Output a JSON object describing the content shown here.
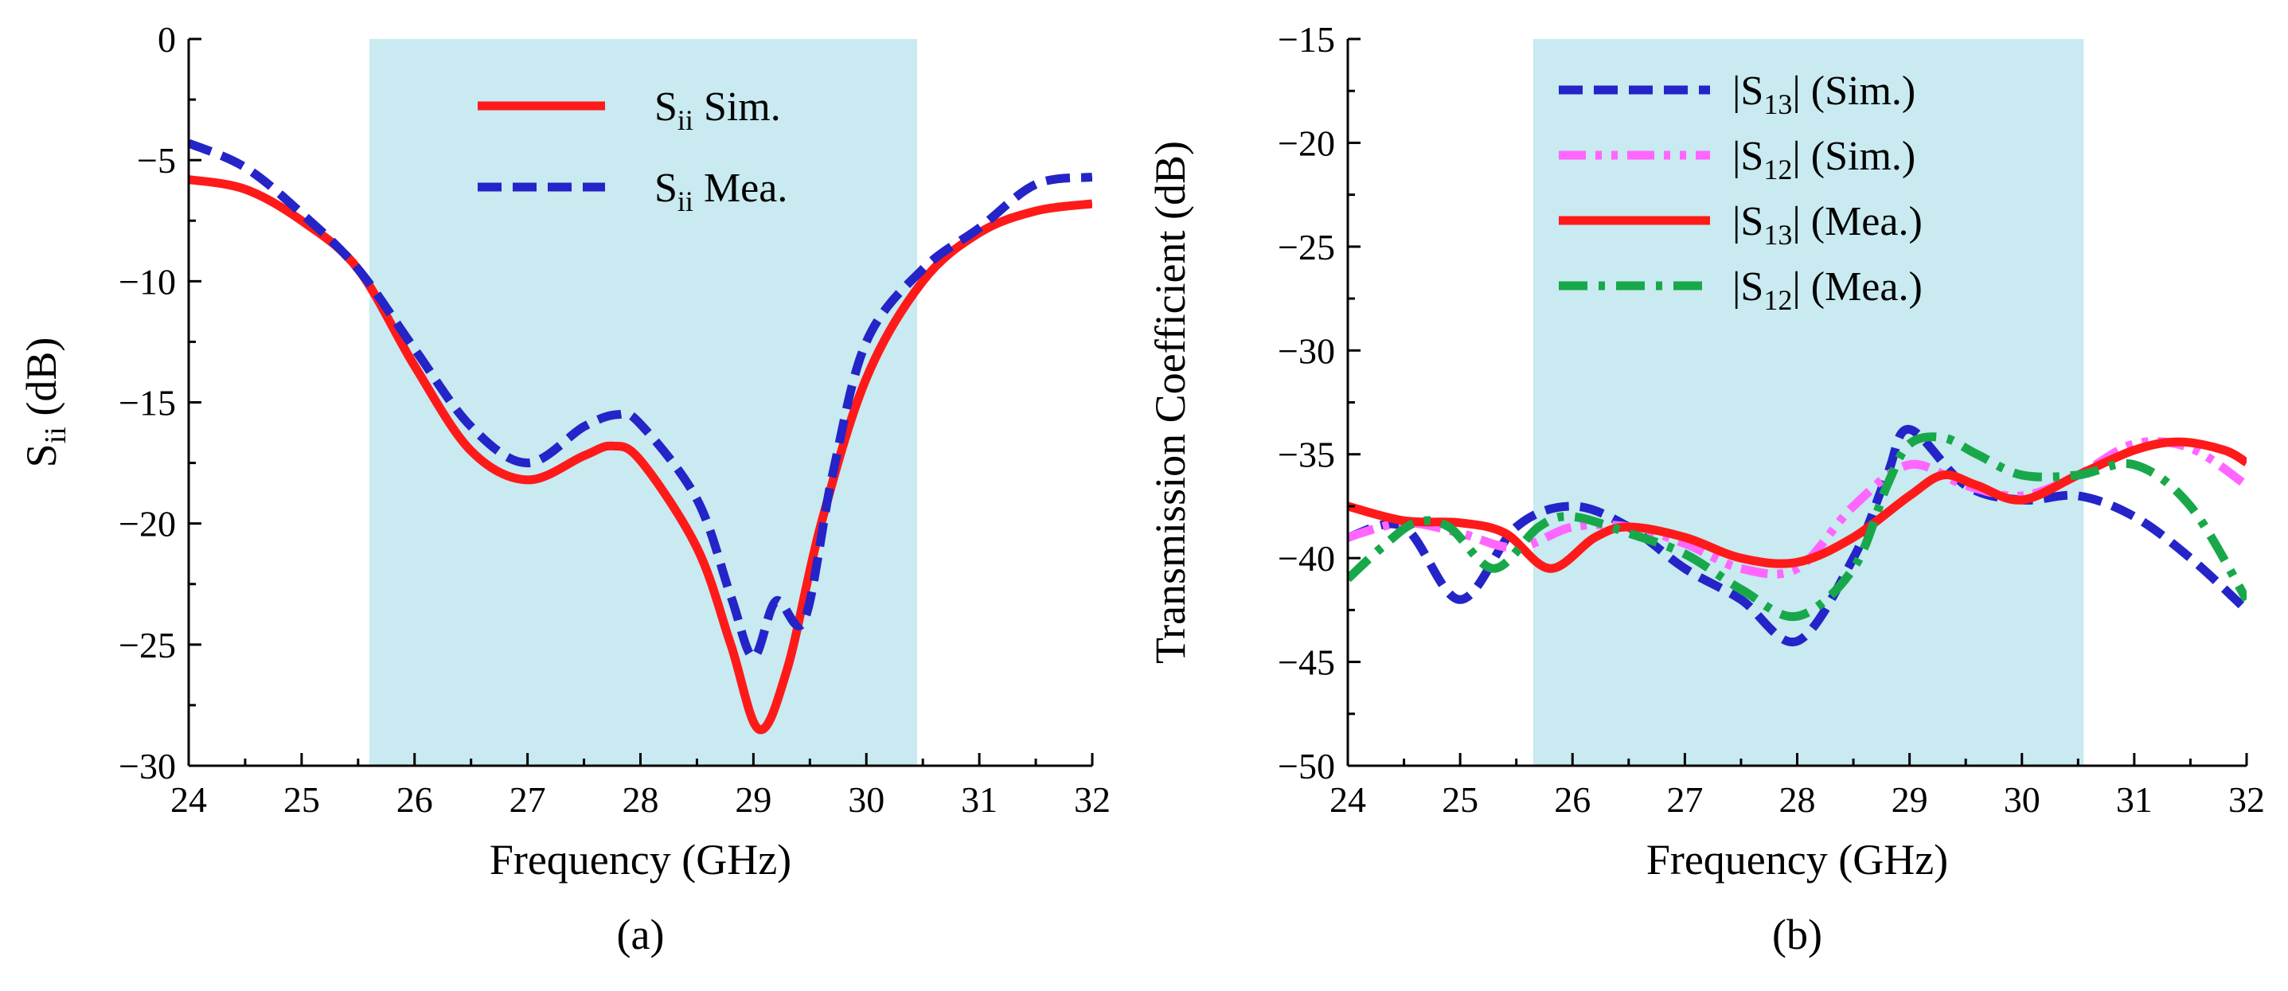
{
  "chart_data": [
    {
      "type": "line",
      "panel_caption": "(a)",
      "xlabel": "Frequency (GHz)",
      "ylabel": "S",
      "ylabel_sub": "ii",
      "ylabel_tail": " (dB)",
      "xlim": [
        24,
        32
      ],
      "ylim": [
        -30,
        0
      ],
      "xticks": [
        24,
        25,
        26,
        27,
        28,
        29,
        30,
        31,
        32
      ],
      "yticks": [
        0,
        -5,
        -10,
        -15,
        -20,
        -25,
        -30
      ],
      "shaded_band": [
        25.6,
        30.45
      ],
      "colors": {
        "band": "#c8eaf0",
        "red": "#ff1a1a",
        "blue": "#2424c8"
      },
      "series": [
        {
          "name": "Sii Sim.",
          "label_main": "S",
          "label_sub": "ii",
          "label_tail": " Sim.",
          "style": "solid",
          "color": "#ff1a1a",
          "x": [
            24,
            24.5,
            25,
            25.5,
            26,
            26.5,
            27,
            27.5,
            27.75,
            28,
            28.5,
            28.8,
            29.05,
            29.3,
            29.6,
            30,
            30.5,
            31,
            31.5,
            32
          ],
          "y": [
            -5.8,
            -6.2,
            -7.5,
            -9.5,
            -13.5,
            -17.0,
            -18.2,
            -17.2,
            -16.8,
            -17.4,
            -21.0,
            -25.0,
            -28.5,
            -26.0,
            -20.0,
            -14.0,
            -10.0,
            -8.0,
            -7.1,
            -6.8
          ]
        },
        {
          "name": "Sii Mea.",
          "label_main": "S",
          "label_sub": "ii",
          "label_tail": " Mea.",
          "style": "dashed",
          "color": "#2424c8",
          "x": [
            24,
            24.5,
            25,
            25.5,
            26,
            26.5,
            27,
            27.5,
            27.8,
            28,
            28.5,
            28.8,
            29.0,
            29.2,
            29.45,
            29.7,
            30,
            30.5,
            31,
            31.5,
            32
          ],
          "y": [
            -4.3,
            -5.3,
            -7.2,
            -9.5,
            -12.8,
            -16.0,
            -17.5,
            -16.0,
            -15.5,
            -15.9,
            -19.0,
            -23.0,
            -25.5,
            -23.2,
            -24.0,
            -18.0,
            -12.5,
            -9.5,
            -7.8,
            -6.0,
            -5.7
          ]
        }
      ]
    },
    {
      "type": "line",
      "panel_caption": "(b)",
      "xlabel": "Frequency (GHz)",
      "ylabel": "Transmission Coefficient (dB)",
      "xlim": [
        24,
        32
      ],
      "ylim": [
        -50,
        -15
      ],
      "xticks": [
        24,
        25,
        26,
        27,
        28,
        29,
        30,
        31,
        32
      ],
      "yticks": [
        -15,
        -20,
        -25,
        -30,
        -35,
        -40,
        -45,
        -50
      ],
      "shaded_band": [
        25.65,
        30.55
      ],
      "colors": {
        "band": "#c8eaf0",
        "red": "#ff1a1a",
        "blue": "#2424c8",
        "pink": "#ff66ff",
        "green": "#18a84a"
      },
      "series": [
        {
          "name": "|S13| (Sim.)",
          "label_main": "|S",
          "label_sub": "13",
          "label_tail": "| (Sim.)",
          "style": "dashed",
          "color": "#2424c8",
          "x": [
            24,
            24.5,
            25,
            25.5,
            26,
            26.5,
            27,
            27.5,
            28,
            28.5,
            28.8,
            29,
            29.5,
            30,
            30.5,
            31,
            31.5,
            32
          ],
          "y": [
            -39.0,
            -38.5,
            -42.0,
            -38.5,
            -37.5,
            -38.5,
            -40.5,
            -42.0,
            -44.0,
            -40.0,
            -36.0,
            -33.8,
            -36.5,
            -37.2,
            -37.0,
            -38.0,
            -40.0,
            -42.5
          ]
        },
        {
          "name": "|S12| (Sim.)",
          "label_main": "|S",
          "label_sub": "12",
          "label_tail": "| (Sim.)",
          "style": "dashdotdot",
          "color": "#ff66ff",
          "x": [
            24,
            24.5,
            25,
            25.5,
            26,
            26.5,
            27,
            27.5,
            28,
            28.5,
            29,
            29.5,
            30,
            30.5,
            31,
            31.5,
            32
          ],
          "y": [
            -39.0,
            -38.3,
            -38.8,
            -39.5,
            -38.5,
            -38.5,
            -39.3,
            -40.5,
            -40.5,
            -37.5,
            -35.5,
            -36.5,
            -37.0,
            -36.0,
            -34.5,
            -34.7,
            -36.5
          ]
        },
        {
          "name": "|S13| (Mea.)",
          "label_main": "|S",
          "label_sub": "13",
          "label_tail": "| (Mea.)",
          "style": "solid",
          "color": "#ff1a1a",
          "x": [
            24,
            24.5,
            25,
            25.4,
            25.8,
            26.2,
            26.5,
            27,
            27.5,
            28,
            28.5,
            29,
            29.3,
            29.6,
            30,
            30.5,
            31,
            31.4,
            31.8,
            32
          ],
          "y": [
            -37.5,
            -38.2,
            -38.3,
            -38.8,
            -40.5,
            -39.0,
            -38.5,
            -39.0,
            -40.0,
            -40.2,
            -39.0,
            -37.0,
            -36.0,
            -36.5,
            -37.2,
            -36.0,
            -34.8,
            -34.4,
            -34.8,
            -35.4
          ]
        },
        {
          "name": "|S12| (Mea.)",
          "label_main": "|S",
          "label_sub": "12",
          "label_tail": "| (Mea.)",
          "style": "dashdot",
          "color": "#18a84a",
          "x": [
            24,
            24.3,
            24.6,
            24.9,
            25.3,
            25.7,
            26,
            26.5,
            27,
            27.5,
            28,
            28.5,
            28.8,
            29,
            29.3,
            29.6,
            30,
            30.5,
            31,
            31.5,
            32
          ],
          "y": [
            -41.0,
            -39.5,
            -38.3,
            -38.5,
            -40.5,
            -38.5,
            -38.0,
            -38.8,
            -39.8,
            -41.5,
            -42.8,
            -40.5,
            -36.5,
            -34.5,
            -34.2,
            -35.0,
            -36.0,
            -36.0,
            -35.5,
            -37.5,
            -42.0
          ]
        }
      ]
    }
  ]
}
